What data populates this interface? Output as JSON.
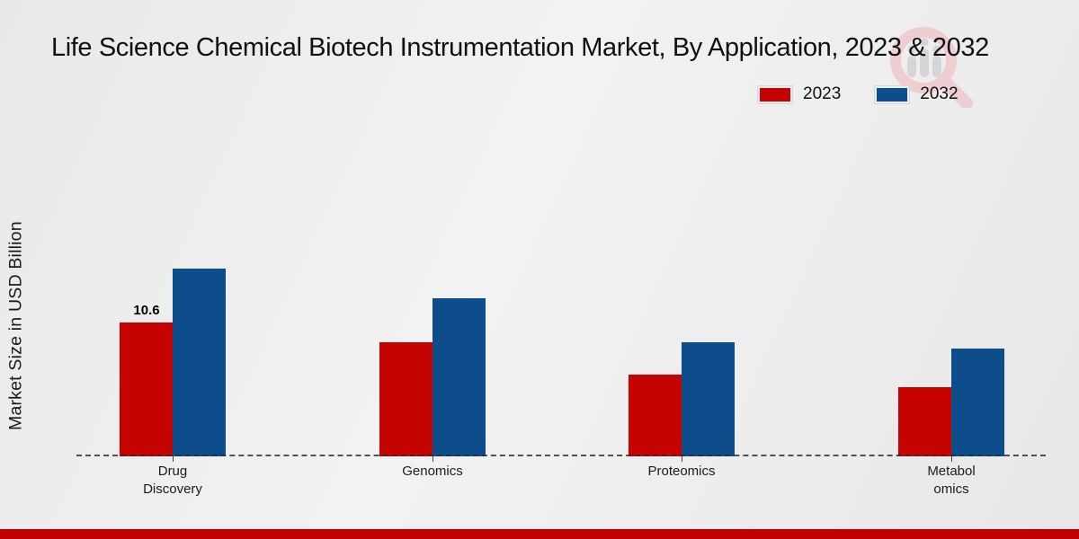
{
  "title": "Life Science Chemical Biotech Instrumentation Market, By Application, 2023 & 2032",
  "branding": {
    "watermark_icon": "magnifier-bar-chart-logo-icon",
    "bottom_strip_color": "#c00000",
    "watermark_pink": "#efb6ba",
    "watermark_gray": "#c3c3c6"
  },
  "chart_data": {
    "type": "bar",
    "title": "Life Science Chemical Biotech Instrumentation Market, By Application, 2023 & 2032",
    "ylabel": "Market Size in USD Billion",
    "xlabel": "",
    "categories": [
      "Drug\nDiscovery",
      "Genomics",
      "Proteomics",
      "Metabol\nomics"
    ],
    "series": [
      {
        "name": "2023",
        "color": "#c50402",
        "values": [
          10.6,
          9.0,
          6.5,
          5.5
        ]
      },
      {
        "name": "2032",
        "color": "#0e4d8b",
        "values": [
          14.9,
          12.5,
          9.0,
          8.5
        ]
      }
    ],
    "annotations": [
      {
        "series_index": 0,
        "category_index": 0,
        "text": "10.6"
      }
    ],
    "ylim": [
      0,
      16
    ],
    "grid": false,
    "legend_position": "top-right",
    "baseline_style": "dashed"
  }
}
